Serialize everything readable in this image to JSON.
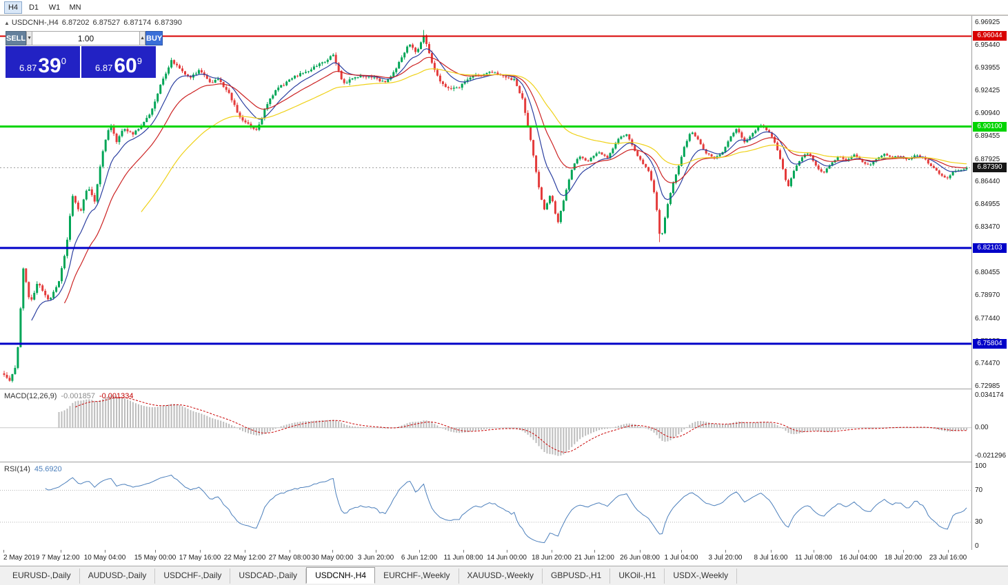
{
  "toolbar": {
    "timeframes": [
      {
        "label": "H4",
        "active": true
      },
      {
        "label": "D1",
        "active": false
      },
      {
        "label": "W1",
        "active": false
      },
      {
        "label": "MN",
        "active": false
      }
    ]
  },
  "chart": {
    "title": {
      "collapse_icon": "▲",
      "symbol": "USDCNH-,H4",
      "open": "6.87202",
      "high": "6.87527",
      "low": "6.87174",
      "close": "6.87390"
    },
    "trade_panel": {
      "sell_label": "SELL",
      "buy_label": "BUY",
      "volume": "1.00",
      "spin_down": "▼",
      "spin_up": "▲",
      "sell_price": {
        "small": "6.87",
        "big": "39",
        "sup": "0"
      },
      "buy_price": {
        "small": "6.87",
        "big": "60",
        "sup": "9"
      }
    }
  },
  "chart_data": {
    "type": "candlestick",
    "symbol": "USDCNH-,H4",
    "timeframe": "H4",
    "ohlc_display": {
      "open": "6.87202",
      "high": "6.87527",
      "low": "6.87174",
      "close": "6.87390"
    },
    "bars": 352,
    "current_price": 6.8739,
    "current_price_label": "6.87390",
    "price_axis": {
      "max": 6.9738,
      "min": 6.7285,
      "ticks": [
        "6.96925",
        "6.95440",
        "6.93955",
        "6.92425",
        "6.90940",
        "6.89455",
        "6.87925",
        "6.86440",
        "6.84955",
        "6.83470",
        "6.81985",
        "6.80455",
        "6.78970",
        "6.77440",
        "6.75955",
        "6.74470",
        "6.72985"
      ]
    },
    "hlines": [
      {
        "value": 6.96044,
        "label": "6.96044",
        "color": "#d80000",
        "width": 2
      },
      {
        "value": 6.901,
        "label": "6.90100",
        "color": "#00d400",
        "width": 3
      },
      {
        "value": 6.82103,
        "label": "6.82103",
        "color": "#0000c8",
        "width": 3
      },
      {
        "value": 6.75804,
        "label": "6.75804",
        "color": "#0000c8",
        "width": 3
      }
    ],
    "moving_averages": [
      {
        "period": 10,
        "color": "#2b3fa0"
      },
      {
        "period": 22,
        "color": "#cc2222"
      },
      {
        "period": 50,
        "color": "#efd117"
      }
    ],
    "candle_colors": {
      "up": "#00a556",
      "down": "#e43b3b"
    },
    "price_path_anchors": [
      [
        0,
        6.738
      ],
      [
        0.006,
        6.733
      ],
      [
        0.013,
        6.745
      ],
      [
        0.02,
        6.808
      ],
      [
        0.027,
        6.785
      ],
      [
        0.035,
        6.798
      ],
      [
        0.046,
        6.787
      ],
      [
        0.056,
        6.796
      ],
      [
        0.064,
        6.818
      ],
      [
        0.071,
        6.856
      ],
      [
        0.079,
        6.843
      ],
      [
        0.087,
        6.862
      ],
      [
        0.094,
        6.852
      ],
      [
        0.103,
        6.886
      ],
      [
        0.11,
        6.904
      ],
      [
        0.117,
        6.889
      ],
      [
        0.124,
        6.901
      ],
      [
        0.133,
        6.896
      ],
      [
        0.143,
        6.902
      ],
      [
        0.153,
        6.911
      ],
      [
        0.163,
        6.929
      ],
      [
        0.174,
        6.945
      ],
      [
        0.183,
        6.938
      ],
      [
        0.193,
        6.932
      ],
      [
        0.203,
        6.938
      ],
      [
        0.213,
        6.929
      ],
      [
        0.223,
        6.933
      ],
      [
        0.233,
        6.923
      ],
      [
        0.243,
        6.909
      ],
      [
        0.255,
        6.901
      ],
      [
        0.263,
        6.898
      ],
      [
        0.272,
        6.914
      ],
      [
        0.283,
        6.925
      ],
      [
        0.298,
        6.932
      ],
      [
        0.315,
        6.938
      ],
      [
        0.33,
        6.943
      ],
      [
        0.342,
        6.948
      ],
      [
        0.352,
        6.929
      ],
      [
        0.363,
        6.933
      ],
      [
        0.382,
        6.934
      ],
      [
        0.395,
        6.93
      ],
      [
        0.408,
        6.939
      ],
      [
        0.42,
        6.956
      ],
      [
        0.429,
        6.95
      ],
      [
        0.436,
        6.962
      ],
      [
        0.446,
        6.939
      ],
      [
        0.458,
        6.926
      ],
      [
        0.473,
        6.928
      ],
      [
        0.487,
        6.934
      ],
      [
        0.503,
        6.936
      ],
      [
        0.518,
        6.935
      ],
      [
        0.53,
        6.932
      ],
      [
        0.539,
        6.918
      ],
      [
        0.547,
        6.892
      ],
      [
        0.555,
        6.862
      ],
      [
        0.561,
        6.846
      ],
      [
        0.568,
        6.857
      ],
      [
        0.575,
        6.836
      ],
      [
        0.581,
        6.852
      ],
      [
        0.589,
        6.872
      ],
      [
        0.597,
        6.882
      ],
      [
        0.607,
        6.878
      ],
      [
        0.617,
        6.885
      ],
      [
        0.627,
        6.88
      ],
      [
        0.637,
        6.892
      ],
      [
        0.647,
        6.896
      ],
      [
        0.656,
        6.884
      ],
      [
        0.664,
        6.876
      ],
      [
        0.671,
        6.87
      ],
      [
        0.677,
        6.852
      ],
      [
        0.682,
        6.824
      ],
      [
        0.688,
        6.845
      ],
      [
        0.694,
        6.862
      ],
      [
        0.7,
        6.873
      ],
      [
        0.707,
        6.888
      ],
      [
        0.714,
        6.898
      ],
      [
        0.721,
        6.892
      ],
      [
        0.729,
        6.884
      ],
      [
        0.738,
        6.88
      ],
      [
        0.746,
        6.884
      ],
      [
        0.754,
        6.893
      ],
      [
        0.761,
        6.9
      ],
      [
        0.769,
        6.89
      ],
      [
        0.777,
        6.896
      ],
      [
        0.786,
        6.902
      ],
      [
        0.794,
        6.898
      ],
      [
        0.801,
        6.89
      ],
      [
        0.808,
        6.876
      ],
      [
        0.814,
        6.86
      ],
      [
        0.82,
        6.872
      ],
      [
        0.828,
        6.88
      ],
      [
        0.836,
        6.884
      ],
      [
        0.843,
        6.875
      ],
      [
        0.851,
        6.87
      ],
      [
        0.859,
        6.876
      ],
      [
        0.867,
        6.882
      ],
      [
        0.875,
        6.879
      ],
      [
        0.883,
        6.882
      ],
      [
        0.891,
        6.878
      ],
      [
        0.899,
        6.876
      ],
      [
        0.907,
        6.88
      ],
      [
        0.915,
        6.883
      ],
      [
        0.923,
        6.88
      ],
      [
        0.931,
        6.882
      ],
      [
        0.939,
        6.879
      ],
      [
        0.947,
        6.882
      ],
      [
        0.955,
        6.88
      ],
      [
        0.963,
        6.875
      ],
      [
        0.971,
        6.87
      ],
      [
        0.979,
        6.867
      ],
      [
        0.987,
        6.872
      ],
      [
        1,
        6.8739
      ]
    ],
    "macd": {
      "label": "MACD(12,26,9)",
      "main_value": "-0.001857",
      "signal_value": "-0.001334",
      "fast": 12,
      "slow": 26,
      "signal": 9,
      "axis_top": "0.034174",
      "axis_zero": "0.00",
      "axis_bottom": "-0.021296",
      "hist_color": "#bcbcbc",
      "signal_color": "#c80000"
    },
    "rsi": {
      "label": "RSI(14)",
      "value": "45.6920",
      "period": 14,
      "levels": [
        70,
        30
      ],
      "axis": [
        {
          "v": 100,
          "label": "100"
        },
        {
          "v": 70,
          "label": "70"
        },
        {
          "v": 30,
          "label": "30"
        },
        {
          "v": 0,
          "label": "0"
        }
      ],
      "color": "#4a7ebb"
    },
    "time_labels": [
      {
        "label": "2 May 2019",
        "f": 0.0
      },
      {
        "label": "7 May 12:00",
        "f": 0.059
      },
      {
        "label": "10 May 04:00",
        "f": 0.1046
      },
      {
        "label": "15 May 00:00",
        "f": 0.1566
      },
      {
        "label": "17 May 16:00",
        "f": 0.2028
      },
      {
        "label": "22 May 12:00",
        "f": 0.2491
      },
      {
        "label": "27 May 08:00",
        "f": 0.2954
      },
      {
        "label": "30 May 00:00",
        "f": 0.3395
      },
      {
        "label": "3 Jun 20:00",
        "f": 0.3843
      },
      {
        "label": "6 Jun 12:00",
        "f": 0.4292
      },
      {
        "label": "11 Jun 08:00",
        "f": 0.4747
      },
      {
        "label": "14 Jun 00:00",
        "f": 0.5196
      },
      {
        "label": "18 Jun 20:00",
        "f": 0.5658
      },
      {
        "label": "21 Jun 12:00",
        "f": 0.61
      },
      {
        "label": "26 Jun 08:00",
        "f": 0.657
      },
      {
        "label": "1 Jul 04:00",
        "f": 0.6996
      },
      {
        "label": "3 Jul 20:00",
        "f": 0.7452
      },
      {
        "label": "8 Jul 16:00",
        "f": 0.7922
      },
      {
        "label": "11 Jul 08:00",
        "f": 0.8363
      },
      {
        "label": "16 Jul 04:00",
        "f": 0.8826
      },
      {
        "label": "18 Jul 20:00",
        "f": 0.9288
      },
      {
        "label": "23 Jul 16:00",
        "f": 0.9751
      }
    ]
  },
  "tabs": [
    {
      "name": "eurusd-daily",
      "label": "EURUSD-,Daily",
      "active": false
    },
    {
      "name": "audusd-daily",
      "label": "AUDUSD-,Daily",
      "active": false
    },
    {
      "name": "usdchf-daily",
      "label": "USDCHF-,Daily",
      "active": false
    },
    {
      "name": "usdcad-daily",
      "label": "USDCAD-,Daily",
      "active": false
    },
    {
      "name": "usdcnh-h4",
      "label": "USDCNH-,H4",
      "active": true
    },
    {
      "name": "eurchf-weekly",
      "label": "EURCHF-,Weekly",
      "active": false
    },
    {
      "name": "xauusd-weekly",
      "label": "XAUUSD-,Weekly",
      "active": false
    },
    {
      "name": "gbpusd-h1",
      "label": "GBPUSD-,H1",
      "active": false
    },
    {
      "name": "ukoil-h1",
      "label": "UKOil-,H1",
      "active": false
    },
    {
      "name": "usdx-weekly",
      "label": "USDX-,Weekly",
      "active": false
    }
  ]
}
